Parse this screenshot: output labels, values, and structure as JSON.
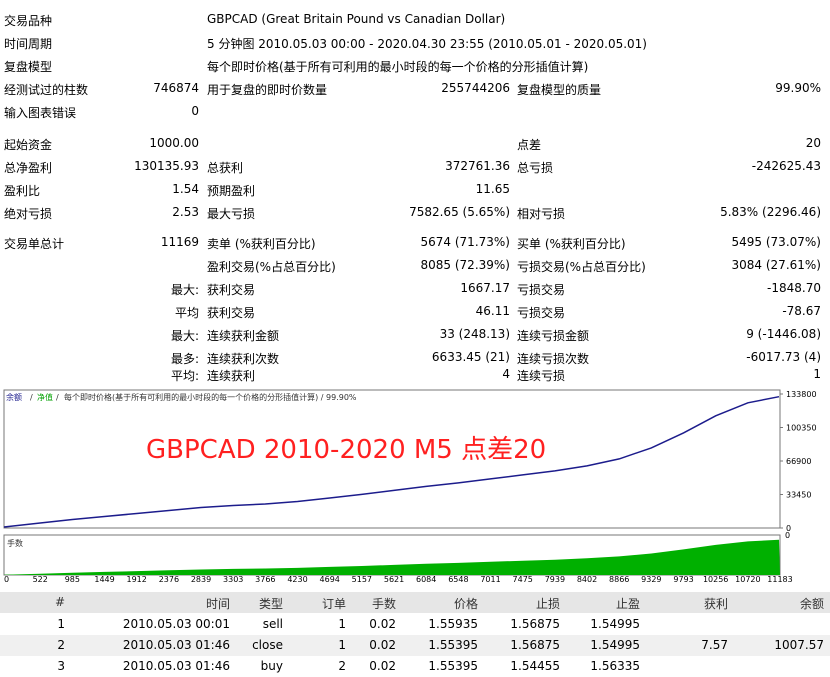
{
  "report": {
    "symbol": {
      "label": "交易品种",
      "value": "GBPCAD (Great Britain Pound vs Canadian Dollar)"
    },
    "period": {
      "label": "时间周期",
      "value": "5 分钟图 2010.05.03 00:00 - 2020.04.30 23:55 (2010.05.01 - 2020.05.01)"
    },
    "model": {
      "label": "复盘模型",
      "value": "每个即时价格(基于所有可利用的最小时段的每一个价格的分形插值计算)"
    },
    "bars": {
      "label": "经测试过的柱数",
      "value": "746874",
      "ticks_label": "用于复盘的即时价数量",
      "ticks_value": "255744206",
      "quality_label": "复盘模型的质量",
      "quality_value": "99.90%"
    },
    "errors": {
      "label": "输入图表错误",
      "value": "0"
    },
    "deposit": {
      "label": "起始资金",
      "value": "1000.00",
      "spread_label": "点差",
      "spread_value": "20"
    },
    "net": {
      "label": "总净盈利",
      "value": "130135.93",
      "gross_profit_label": "总获利",
      "gross_profit": "372761.36",
      "gross_loss_label": "总亏损",
      "gross_loss": "-242625.43"
    },
    "pf": {
      "label": "盈利比",
      "value": "1.54",
      "expected_label": "预期盈利",
      "expected": "11.65"
    },
    "dd": {
      "label": "绝对亏损",
      "value": "2.53",
      "max_dd_label": "最大亏损",
      "max_dd": "7582.65 (5.65%)",
      "rel_dd_label": "相对亏损",
      "rel_dd": "5.83% (2296.46)"
    },
    "trades": {
      "label": "交易单总计",
      "value": "11169",
      "short_label": "卖单 (%获利百分比)",
      "short": "5674 (71.73%)",
      "long_label": "买单 (%获利百分比)",
      "long": "5495 (73.07%)"
    },
    "pt": {
      "label": "盈利交易(%占总百分比)",
      "value": "8085 (72.39%)",
      "lt_label": "亏损交易(%占总百分比)",
      "lt_value": "3084 (27.61%)"
    },
    "largest": {
      "prefix": "最大:",
      "label": "获利交易",
      "value": "1667.17",
      "loss_label": "亏损交易",
      "loss": "-1848.70"
    },
    "average": {
      "prefix": "平均",
      "label": "获利交易",
      "value": "46.11",
      "loss_label": "亏损交易",
      "loss": "-78.67"
    },
    "max_cons": {
      "prefix": "最大:",
      "label": "连续获利金额",
      "value": "33 (248.13)",
      "loss_label": "连续亏损金额",
      "loss": "9 (-1446.08)"
    },
    "maximal": {
      "prefix": "最多:",
      "label": "连续获利次数",
      "value": "6633.45 (21)",
      "loss_label": "连续亏损次数",
      "loss": "-6017.73 (4)"
    },
    "avg_cons": {
      "prefix": "平均:",
      "label": "连续获利",
      "value": "4",
      "loss_label": "连续亏损",
      "loss": "1"
    }
  },
  "chart": {
    "header_balance": "余额",
    "header_equity": "净值",
    "header_text": "每个即时价格(基于所有可利用的最小时段的每一个价格的分形插值计算) / 99.90%",
    "sep": "/",
    "overlay": "GBPCAD 2010-2020 M5 点差20",
    "lots_label": "手数",
    "balance_color": "#1c1c8c",
    "lots_color": "#00b000",
    "overlay_color": "#ff2020"
  },
  "chart_data": {
    "type": "line",
    "y_ticks": [
      "133800",
      "100350",
      "66900",
      "33450",
      "0"
    ],
    "x_ticks": [
      "0",
      "522",
      "985",
      "1449",
      "1912",
      "2376",
      "2839",
      "3303",
      "3766",
      "4230",
      "4694",
      "5157",
      "5621",
      "6084",
      "6548",
      "7011",
      "7475",
      "7939",
      "8402",
      "8866",
      "9329",
      "9793",
      "10256",
      "10720",
      "11183"
    ],
    "series": [
      {
        "x": [
          0,
          522,
          985,
          1449,
          1912,
          2376,
          2839,
          3303,
          3766,
          4230,
          4694,
          5157,
          5621,
          6084,
          6548,
          7011,
          7475,
          7939,
          8402,
          8866,
          9329,
          9793,
          10256,
          10720,
          11169
        ],
        "values": [
          1000,
          5000,
          8500,
          11500,
          14500,
          17500,
          20500,
          22500,
          24000,
          26500,
          30000,
          33500,
          37500,
          41500,
          45000,
          49000,
          53000,
          57000,
          62000,
          69000,
          80000,
          95000,
          112000,
          125000,
          131136
        ]
      }
    ],
    "ylim": [
      0,
      133800
    ],
    "xlim": [
      0,
      11183
    ]
  },
  "trades_table": {
    "headers": [
      "#",
      "时间",
      "类型",
      "订单",
      "手数",
      "价格",
      "止损",
      "止盈",
      "获利",
      "余额"
    ],
    "rows": [
      [
        "1",
        "2010.05.03 00:01",
        "sell",
        "1",
        "0.02",
        "1.55935",
        "1.56875",
        "1.54995",
        "",
        ""
      ],
      [
        "2",
        "2010.05.03 01:46",
        "close",
        "1",
        "0.02",
        "1.55395",
        "1.56875",
        "1.54995",
        "7.57",
        "1007.57"
      ],
      [
        "3",
        "2010.05.03 01:46",
        "buy",
        "2",
        "0.02",
        "1.55395",
        "1.54455",
        "1.56335",
        "",
        ""
      ]
    ]
  }
}
